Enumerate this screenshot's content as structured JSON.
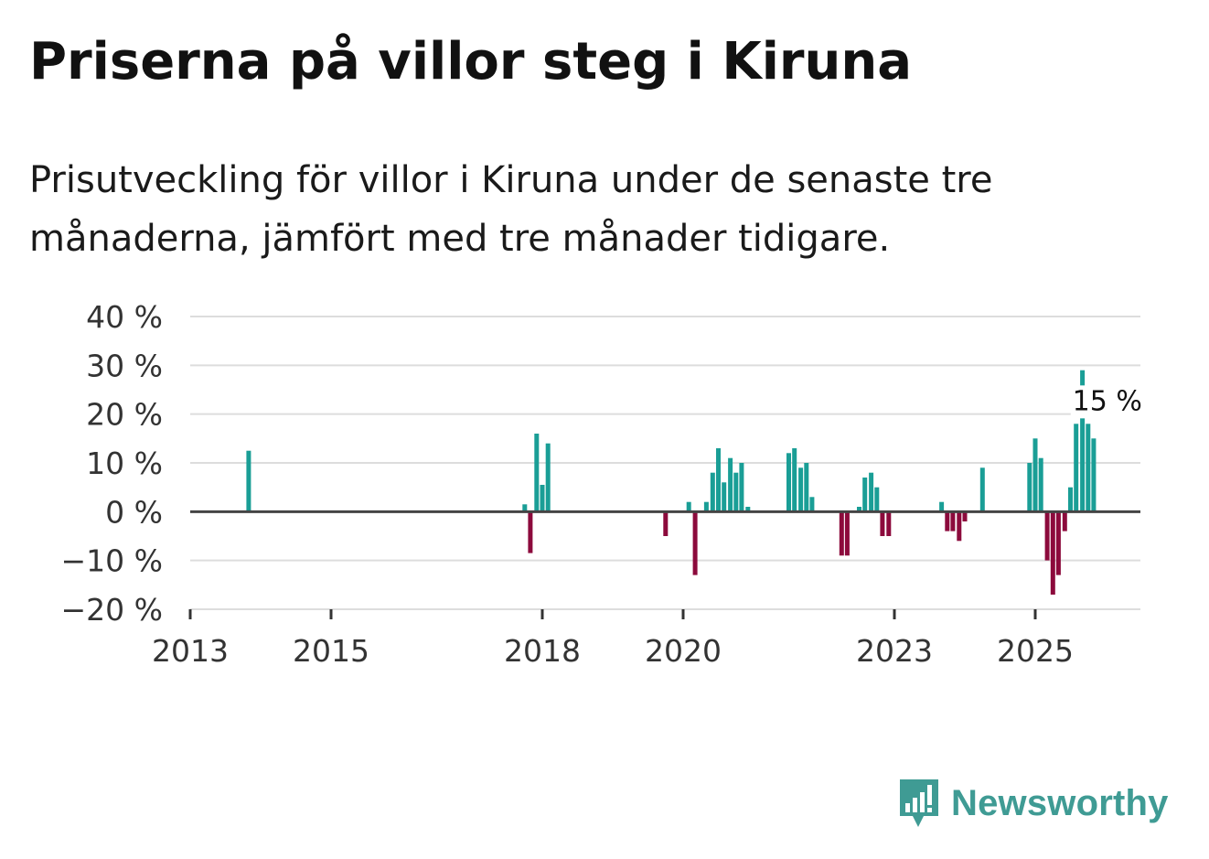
{
  "title": "Priserna på villor steg i Kiruna",
  "subtitle": "Prisutveckling för villor i Kiruna under de senaste tre månaderna, jämfört med tre månader tidigare.",
  "brand": {
    "name": "Newsworthy",
    "icon": "newsworthy-logo-icon"
  },
  "colors": {
    "positive": "#1a9e96",
    "negative": "#8c0a3c",
    "grid": "#dddddd",
    "zero_line": "#444444",
    "brand": "#3f9b94"
  },
  "chart_data": {
    "type": "bar",
    "ylim": [
      -20,
      40
    ],
    "xlim": [
      2013,
      2026.5
    ],
    "y_ticks": [
      {
        "value": 40,
        "label": "40 %"
      },
      {
        "value": 30,
        "label": "30 %"
      },
      {
        "value": 20,
        "label": "20 %"
      },
      {
        "value": 10,
        "label": "10 %"
      },
      {
        "value": 0,
        "label": "0 %"
      },
      {
        "value": -10,
        "label": "−10 %"
      },
      {
        "value": -20,
        "label": "−20 %"
      }
    ],
    "x_ticks": [
      {
        "value": 2013,
        "label": "2013"
      },
      {
        "value": 2015,
        "label": "2015"
      },
      {
        "value": 2018,
        "label": "2018"
      },
      {
        "value": 2020,
        "label": "2020"
      },
      {
        "value": 2023,
        "label": "2023"
      },
      {
        "value": 2025,
        "label": "2025"
      }
    ],
    "grid": true,
    "annotation": {
      "label": "15 %",
      "x": 2025.75,
      "y": 15
    },
    "points": [
      {
        "x": 2013.83,
        "y": 12.5
      },
      {
        "x": 2017.75,
        "y": 1.5
      },
      {
        "x": 2017.83,
        "y": -8.5
      },
      {
        "x": 2017.92,
        "y": 16
      },
      {
        "x": 2018.0,
        "y": 5.5
      },
      {
        "x": 2018.08,
        "y": 14
      },
      {
        "x": 2019.75,
        "y": -5
      },
      {
        "x": 2020.08,
        "y": 2
      },
      {
        "x": 2020.17,
        "y": -13
      },
      {
        "x": 2020.33,
        "y": 2
      },
      {
        "x": 2020.42,
        "y": 8
      },
      {
        "x": 2020.5,
        "y": 13
      },
      {
        "x": 2020.58,
        "y": 6
      },
      {
        "x": 2020.67,
        "y": 11
      },
      {
        "x": 2020.75,
        "y": 8
      },
      {
        "x": 2020.83,
        "y": 10
      },
      {
        "x": 2020.92,
        "y": 1
      },
      {
        "x": 2021.5,
        "y": 12
      },
      {
        "x": 2021.58,
        "y": 13
      },
      {
        "x": 2021.67,
        "y": 9
      },
      {
        "x": 2021.75,
        "y": 10
      },
      {
        "x": 2021.83,
        "y": 3
      },
      {
        "x": 2022.25,
        "y": -9
      },
      {
        "x": 2022.33,
        "y": -9
      },
      {
        "x": 2022.5,
        "y": 1
      },
      {
        "x": 2022.58,
        "y": 7
      },
      {
        "x": 2022.67,
        "y": 8
      },
      {
        "x": 2022.75,
        "y": 5
      },
      {
        "x": 2022.83,
        "y": -5
      },
      {
        "x": 2022.92,
        "y": -5
      },
      {
        "x": 2023.67,
        "y": 2
      },
      {
        "x": 2023.75,
        "y": -4
      },
      {
        "x": 2023.83,
        "y": -4
      },
      {
        "x": 2023.92,
        "y": -6
      },
      {
        "x": 2024.0,
        "y": -2
      },
      {
        "x": 2024.25,
        "y": 9
      },
      {
        "x": 2024.92,
        "y": 10
      },
      {
        "x": 2025.0,
        "y": 15
      },
      {
        "x": 2025.08,
        "y": 11
      },
      {
        "x": 2025.17,
        "y": -10
      },
      {
        "x": 2025.25,
        "y": -17
      },
      {
        "x": 2025.33,
        "y": -13
      },
      {
        "x": 2025.42,
        "y": -4
      },
      {
        "x": 2025.5,
        "y": 5
      },
      {
        "x": 2025.58,
        "y": 18
      },
      {
        "x": 2025.67,
        "y": 29
      },
      {
        "x": 2025.75,
        "y": 18
      },
      {
        "x": 2025.83,
        "y": 15
      }
    ]
  }
}
